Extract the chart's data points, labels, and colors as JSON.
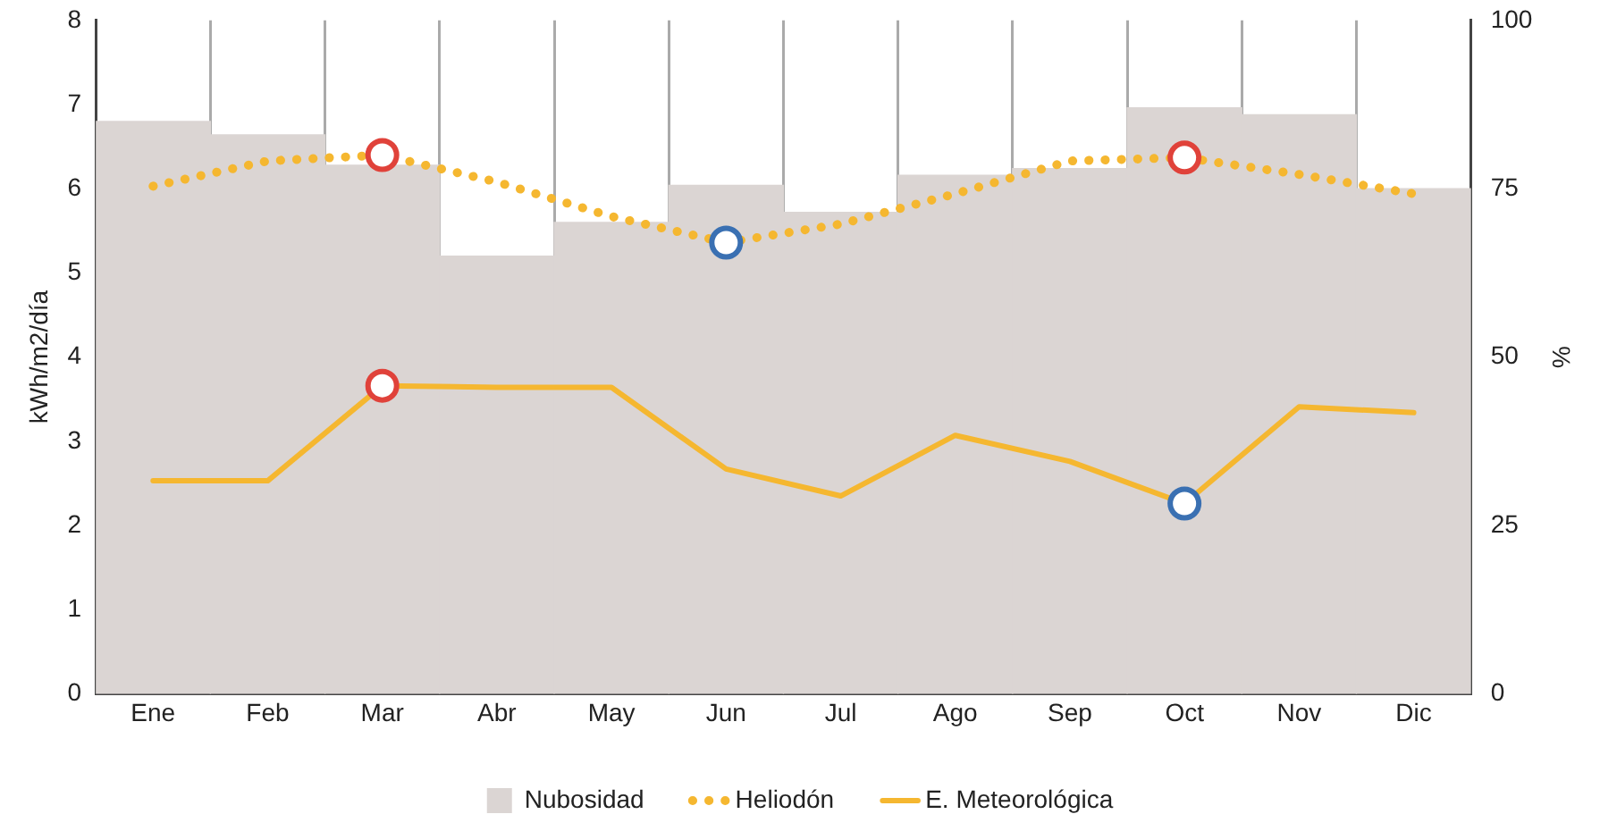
{
  "chart_data": {
    "type": "bar",
    "categories": [
      "Ene",
      "Feb",
      "Mar",
      "Abr",
      "May",
      "Jun",
      "Jul",
      "Ago",
      "Sep",
      "Oct",
      "Nov",
      "Dic"
    ],
    "ylabel": "kWh/m2/día",
    "y2label": "%",
    "ylim": [
      0,
      8
    ],
    "yticks": [
      0,
      1,
      2,
      3,
      4,
      5,
      6,
      7,
      8
    ],
    "y2lim": [
      0,
      100
    ],
    "y2ticks": [
      0,
      25,
      50,
      75,
      100
    ],
    "grid": "x",
    "legend": "bottom",
    "series": [
      {
        "name": "Nubosidad",
        "axis": "y2",
        "color": "#dbd5d3",
        "values": [
          85,
          83,
          78.5,
          65,
          70,
          75.5,
          71.5,
          77,
          78,
          87,
          86,
          75
        ]
      },
      {
        "name": "Heliodón",
        "type": "line",
        "color": "#f5b730",
        "line_style": "dotted",
        "marker": "none",
        "values": [
          6.03,
          6.33,
          6.4,
          6.08,
          5.67,
          5.36,
          5.58,
          5.94,
          6.33,
          6.37,
          6.17,
          5.94
        ]
      },
      {
        "name": "E. Meteorológica",
        "type": "line",
        "color": "#f5b730",
        "line_style": "solid",
        "marker": "none",
        "values": [
          2.53,
          2.53,
          3.66,
          3.64,
          3.64,
          2.67,
          2.35,
          3.07,
          2.76,
          2.26,
          3.41,
          3.34
        ]
      },
      {
        "type": "scatter",
        "color": "#e0423a",
        "marker": "circle",
        "x": [
          "Mar",
          "Oct",
          "Mar"
        ],
        "values": [
          6.4,
          6.37,
          3.66
        ]
      },
      {
        "type": "scatter",
        "color": "#3a70b2",
        "marker": "circle",
        "x": [
          "Jun",
          "Oct"
        ],
        "values": [
          5.36,
          2.26
        ]
      }
    ]
  }
}
